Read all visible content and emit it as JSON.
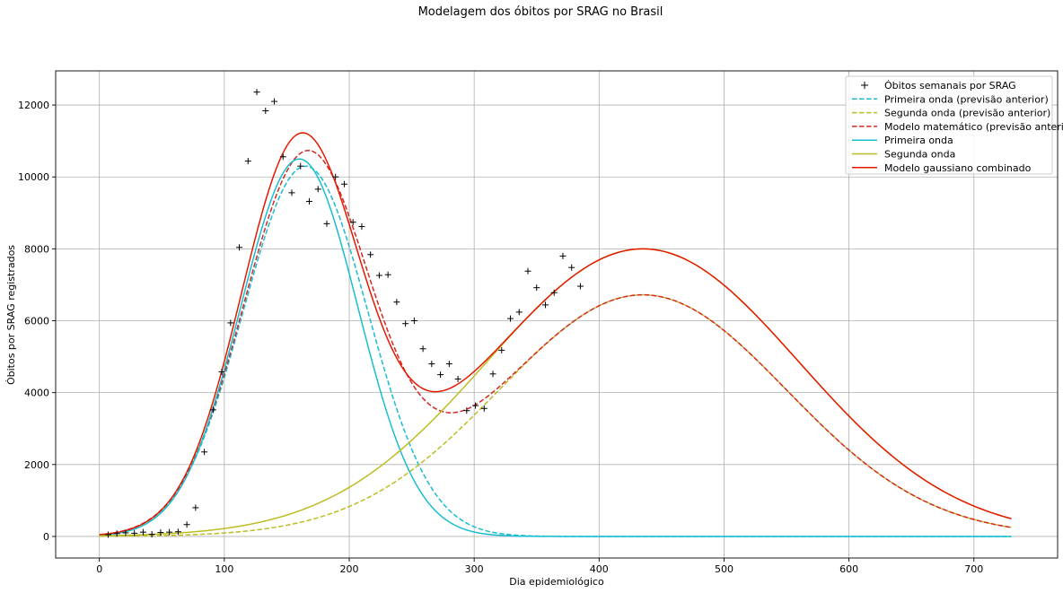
{
  "chart_data": {
    "type": "line",
    "title": "Modelagem dos óbitos por SRAG no Brasil",
    "xlabel": "Dia epidemiológico",
    "ylabel": "Óbitos por SRAG registrados",
    "xlim": [
      -35,
      767
    ],
    "ylim": [
      -600,
      12950
    ],
    "grid": true,
    "legend_position": "top-right",
    "x_ticks": [
      0,
      100,
      200,
      300,
      400,
      500,
      600,
      700
    ],
    "y_ticks": [
      0,
      2000,
      4000,
      6000,
      8000,
      10000,
      12000
    ],
    "x_tick_labels": [
      "0",
      "100",
      "200",
      "300",
      "400",
      "500",
      "600",
      "700"
    ],
    "y_tick_labels": [
      "0",
      "2000",
      "4000",
      "6000",
      "8000",
      "10000",
      "12000"
    ],
    "scatter_series": {
      "name": "Óbitos semanais por SRAG",
      "color": "#000000",
      "marker": "plus",
      "x": [
        7,
        14,
        21,
        28,
        35,
        42,
        49,
        56,
        63,
        70,
        77,
        84,
        91,
        98,
        105,
        112,
        119,
        126,
        133,
        140,
        147,
        154,
        161,
        168,
        175,
        182,
        189,
        196,
        203,
        210,
        217,
        224,
        231,
        238,
        245,
        252,
        259,
        266,
        273,
        280,
        287,
        294,
        301,
        308,
        315,
        322,
        329,
        336,
        343,
        350,
        357,
        364,
        371,
        378,
        385
      ],
      "y": [
        50,
        80,
        100,
        90,
        120,
        60,
        110,
        120,
        130,
        330,
        800,
        2350,
        3520,
        4580,
        5940,
        8040,
        10440,
        12360,
        11840,
        12100,
        10560,
        9560,
        10300,
        9320,
        9660,
        8700,
        10000,
        9800,
        8740,
        8620,
        7840,
        7260,
        7280,
        6520,
        5920,
        6000,
        5220,
        4800,
        4500,
        4800,
        4380,
        3500,
        3640,
        3560,
        4520,
        5180,
        6060,
        6240,
        7380,
        6920,
        6440,
        6780,
        7800,
        7480,
        6960
      ]
    },
    "model_curves": [
      {
        "name": "Primeira onda (previsão anterior)",
        "color": "#17becf",
        "dash": "dashed",
        "type": "gauss",
        "amplitude": 10300,
        "mu": 165,
        "sigma": 50,
        "x_start": 0,
        "x_end": 730
      },
      {
        "name": "Segunda onda (previsão anterior)",
        "color": "#bcbd22",
        "dash": "dashed",
        "type": "gauss",
        "amplitude": 6720,
        "mu": 435,
        "sigma": 115,
        "x_start": 0,
        "x_end": 730
      },
      {
        "name": "Modelo matemático (previsão anterior)",
        "color": "#d62728",
        "dash": "dashed",
        "type": "sum",
        "components": [
          0,
          1
        ],
        "x_start": 0,
        "x_end": 730
      },
      {
        "name": "Primeira onda",
        "color": "#17becf",
        "dash": "solid",
        "type": "gauss",
        "amplitude": 10500,
        "mu": 160,
        "sigma": 47,
        "x_start": 0,
        "x_end": 730
      },
      {
        "name": "Segunda onda",
        "color": "#bcbd22",
        "dash": "solid",
        "type": "gauss",
        "amplitude": 8000,
        "mu": 435,
        "sigma": 125,
        "x_start": 0,
        "x_end": 730
      },
      {
        "name": "Modelo gaussiano combinado",
        "color": "#e41a00",
        "dash": "solid",
        "type": "sum",
        "components": [
          3,
          4
        ],
        "x_start": 0,
        "x_end": 730
      }
    ]
  }
}
